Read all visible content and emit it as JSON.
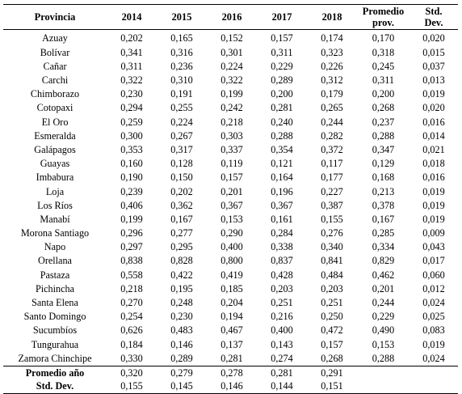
{
  "table": {
    "headers": {
      "provincia": "Provincia",
      "y2014": "2014",
      "y2015": "2015",
      "y2016": "2016",
      "y2017": "2017",
      "y2018": "2018",
      "promedio_l1": "Promedio",
      "promedio_l2": "prov.",
      "std_l1": "Std.",
      "std_l2": "Dev."
    },
    "rows": [
      {
        "provincia": "Azuay",
        "y2014": "0,202",
        "y2015": "0,165",
        "y2016": "0,152",
        "y2017": "0,157",
        "y2018": "0,174",
        "promedio": "0,170",
        "std": "0,020"
      },
      {
        "provincia": "Bolívar",
        "y2014": "0,341",
        "y2015": "0,316",
        "y2016": "0,301",
        "y2017": "0,311",
        "y2018": "0,323",
        "promedio": "0,318",
        "std": "0,015"
      },
      {
        "provincia": "Cañar",
        "y2014": "0,311",
        "y2015": "0,236",
        "y2016": "0,224",
        "y2017": "0,229",
        "y2018": "0,226",
        "promedio": "0,245",
        "std": "0,037"
      },
      {
        "provincia": "Carchi",
        "y2014": "0,322",
        "y2015": "0,310",
        "y2016": "0,322",
        "y2017": "0,289",
        "y2018": "0,312",
        "promedio": "0,311",
        "std": "0,013"
      },
      {
        "provincia": "Chimborazo",
        "y2014": "0,230",
        "y2015": "0,191",
        "y2016": "0,199",
        "y2017": "0,200",
        "y2018": "0,179",
        "promedio": "0,200",
        "std": "0,019"
      },
      {
        "provincia": "Cotopaxi",
        "y2014": "0,294",
        "y2015": "0,255",
        "y2016": "0,242",
        "y2017": "0,281",
        "y2018": "0,265",
        "promedio": "0,268",
        "std": "0,020"
      },
      {
        "provincia": "El Oro",
        "y2014": "0,259",
        "y2015": "0,224",
        "y2016": "0,218",
        "y2017": "0,240",
        "y2018": "0,244",
        "promedio": "0,237",
        "std": "0,016"
      },
      {
        "provincia": "Esmeralda",
        "y2014": "0,300",
        "y2015": "0,267",
        "y2016": "0,303",
        "y2017": "0,288",
        "y2018": "0,282",
        "promedio": "0,288",
        "std": "0,014"
      },
      {
        "provincia": "Galápagos",
        "y2014": "0,353",
        "y2015": "0,317",
        "y2016": "0,337",
        "y2017": "0,354",
        "y2018": "0,372",
        "promedio": "0,347",
        "std": "0,021"
      },
      {
        "provincia": "Guayas",
        "y2014": "0,160",
        "y2015": "0,128",
        "y2016": "0,119",
        "y2017": "0,121",
        "y2018": "0,117",
        "promedio": "0,129",
        "std": "0,018"
      },
      {
        "provincia": "Imbabura",
        "y2014": "0,190",
        "y2015": "0,150",
        "y2016": "0,157",
        "y2017": "0,164",
        "y2018": "0,177",
        "promedio": "0,168",
        "std": "0,016"
      },
      {
        "provincia": "Loja",
        "y2014": "0,239",
        "y2015": "0,202",
        "y2016": "0,201",
        "y2017": "0,196",
        "y2018": "0,227",
        "promedio": "0,213",
        "std": "0,019"
      },
      {
        "provincia": "Los Ríos",
        "y2014": "0,406",
        "y2015": "0,362",
        "y2016": "0,367",
        "y2017": "0,367",
        "y2018": "0,387",
        "promedio": "0,378",
        "std": "0,019"
      },
      {
        "provincia": "Manabí",
        "y2014": "0,199",
        "y2015": "0,167",
        "y2016": "0,153",
        "y2017": "0,161",
        "y2018": "0,155",
        "promedio": "0,167",
        "std": "0,019"
      },
      {
        "provincia": "Morona Santiago",
        "y2014": "0,296",
        "y2015": "0,277",
        "y2016": "0,290",
        "y2017": "0,284",
        "y2018": "0,276",
        "promedio": "0,285",
        "std": "0,009"
      },
      {
        "provincia": "Napo",
        "y2014": "0,297",
        "y2015": "0,295",
        "y2016": "0,400",
        "y2017": "0,338",
        "y2018": "0,340",
        "promedio": "0,334",
        "std": "0,043"
      },
      {
        "provincia": "Orellana",
        "y2014": "0,838",
        "y2015": "0,828",
        "y2016": "0,800",
        "y2017": "0,837",
        "y2018": "0,841",
        "promedio": "0,829",
        "std": "0,017"
      },
      {
        "provincia": "Pastaza",
        "y2014": "0,558",
        "y2015": "0,422",
        "y2016": "0,419",
        "y2017": "0,428",
        "y2018": "0,484",
        "promedio": "0,462",
        "std": "0,060"
      },
      {
        "provincia": "Pichincha",
        "y2014": "0,218",
        "y2015": "0,195",
        "y2016": "0,185",
        "y2017": "0,203",
        "y2018": "0,203",
        "promedio": "0,201",
        "std": "0,012"
      },
      {
        "provincia": "Santa Elena",
        "y2014": "0,270",
        "y2015": "0,248",
        "y2016": "0,204",
        "y2017": "0,251",
        "y2018": "0,251",
        "promedio": "0,244",
        "std": "0,024"
      },
      {
        "provincia": "Santo Domingo",
        "y2014": "0,254",
        "y2015": "0,230",
        "y2016": "0,194",
        "y2017": "0,216",
        "y2018": "0,250",
        "promedio": "0,229",
        "std": "0,025"
      },
      {
        "provincia": "Sucumbíos",
        "y2014": "0,626",
        "y2015": "0,483",
        "y2016": "0,467",
        "y2017": "0,400",
        "y2018": "0,472",
        "promedio": "0,490",
        "std": "0,083"
      },
      {
        "provincia": "Tungurahua",
        "y2014": "0,184",
        "y2015": "0,146",
        "y2016": "0,137",
        "y2017": "0,143",
        "y2018": "0,157",
        "promedio": "0,153",
        "std": "0,019"
      },
      {
        "provincia": "Zamora Chinchipe",
        "y2014": "0,330",
        "y2015": "0,289",
        "y2016": "0,281",
        "y2017": "0,274",
        "y2018": "0,268",
        "promedio": "0,288",
        "std": "0,024"
      }
    ],
    "summary": [
      {
        "label": "Promedio año",
        "y2014": "0,320",
        "y2015": "0,279",
        "y2016": "0,278",
        "y2017": "0,281",
        "y2018": "0,291"
      },
      {
        "label": "Std. Dev.",
        "y2014": "0,155",
        "y2015": "0,145",
        "y2016": "0,146",
        "y2017": "0,144",
        "y2018": "0,151"
      }
    ]
  }
}
